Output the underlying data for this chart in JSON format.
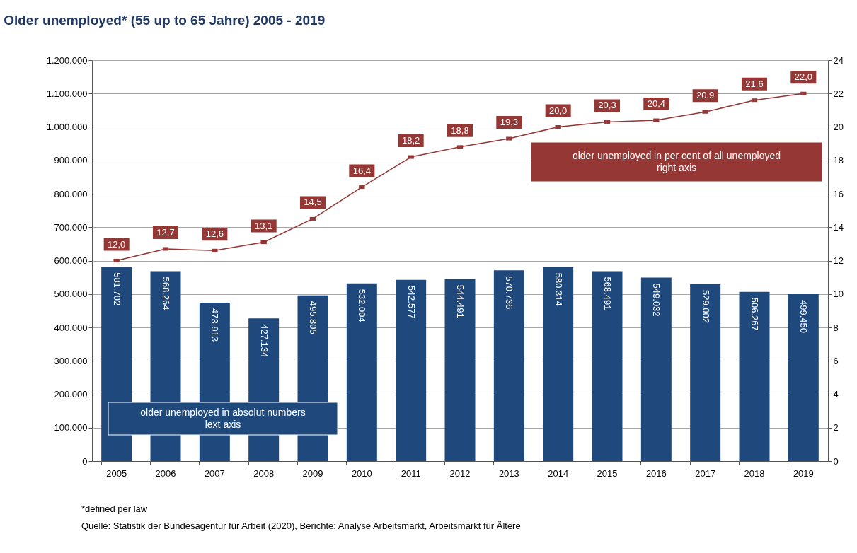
{
  "chart_data": {
    "type": "bar",
    "title": "Older unemployed* (55 up to 65 Jahre) 2005 - 2019",
    "categories": [
      "2005",
      "2006",
      "2007",
      "2008",
      "2009",
      "2010",
      "2011",
      "2012",
      "2013",
      "2014",
      "2015",
      "2016",
      "2017",
      "2018",
      "2019"
    ],
    "series": [
      {
        "name": "older unemployed in absolut numbers\nlext axis",
        "color": "#1f497d",
        "values": [
          581702,
          568264,
          473913,
          427134,
          495805,
          532004,
          542577,
          544491,
          570736,
          580314,
          568491,
          549032,
          529002,
          506267,
          499450
        ],
        "value_labels": [
          "581.702",
          "568.264",
          "473.913",
          "427.134",
          "495.805",
          "532.004",
          "542.577",
          "544.491",
          "570.736",
          "580.314",
          "568.491",
          "549.032",
          "529.002",
          "506.267",
          "499.450"
        ]
      },
      {
        "name": "older unemployed in per cent of all unemployed\nright axis",
        "type": "line",
        "axis": "y2",
        "marker": "square",
        "color": "#953735",
        "values": [
          12.0,
          12.7,
          12.6,
          13.1,
          14.5,
          16.4,
          18.2,
          18.8,
          19.3,
          20.0,
          20.3,
          20.4,
          20.9,
          21.6,
          22.0
        ],
        "value_labels": [
          "12,0",
          "12,7",
          "12,6",
          "13,1",
          "14,5",
          "16,4",
          "18,2",
          "18,8",
          "19,3",
          "20,0",
          "20,3",
          "20,4",
          "20,9",
          "21,6",
          "22,0"
        ]
      }
    ],
    "ylim": [
      0,
      1200000
    ],
    "yticks": [
      0,
      {
        "value": 100000,
        "label": "100.000"
      },
      {
        "value": 200000,
        "label": "200.000"
      },
      {
        "value": 300000,
        "label": "300.000"
      },
      {
        "value": 400000,
        "label": "400.000"
      },
      {
        "value": 500000,
        "label": "500.000"
      },
      {
        "value": 600000,
        "label": "600.000"
      },
      {
        "value": 700000,
        "label": "700.000"
      },
      {
        "value": 800000,
        "label": "800.000"
      },
      {
        "value": 900000,
        "label": "900.000"
      },
      {
        "value": 1000000,
        "label": "1.000.000"
      },
      {
        "value": 1100000,
        "label": "1.100.000"
      },
      {
        "value": 1200000,
        "label": "1.200.000"
      }
    ],
    "y2lim": [
      0,
      24
    ],
    "y2ticks": [
      0,
      2,
      4,
      6,
      8,
      10,
      12,
      14,
      16,
      18,
      20,
      22,
      24
    ],
    "grid": "y",
    "annotations": [
      "*defined per law",
      "Quelle: Statistik der Bundesagentur für Arbeit (2020), Berichte: Analyse Arbeitsmarkt, Arbeitsmarkt für Ältere"
    ]
  }
}
